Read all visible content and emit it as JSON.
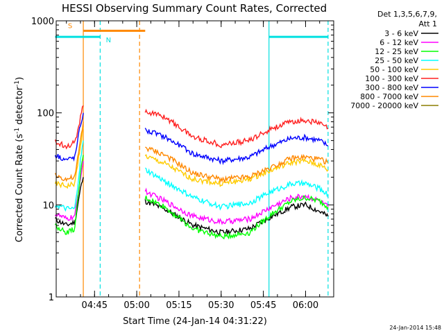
{
  "chart_data": {
    "type": "line",
    "title": "HESSI Observing Summary Count Rates, Corrected",
    "xlabel": "Start Time (24-Jan-14 04:31:22)",
    "ylabel_main": "Corrected Count Rate (s",
    "ylabel_sup1": "-1",
    "ylabel_mid": " detector",
    "ylabel_sup2": "-1",
    "ylabel_end": ")",
    "y_scale": "log",
    "ylim": [
      1,
      1000
    ],
    "y_ticks": [
      {
        "value": 1,
        "label": "1"
      },
      {
        "value": 10,
        "label": "10"
      },
      {
        "value": 100,
        "label": "100"
      },
      {
        "value": 1000,
        "label": "1000"
      }
    ],
    "xlim": [
      "04:31:22",
      "06:10:00"
    ],
    "x_ticks": [
      {
        "value": "04:45",
        "label": "04:45"
      },
      {
        "value": "05:00",
        "label": "05:00"
      },
      {
        "value": "05:15",
        "label": "05:15"
      },
      {
        "value": "05:30",
        "label": "05:30"
      },
      {
        "value": "05:45",
        "label": "05:45"
      },
      {
        "value": "06:00",
        "label": "06:00"
      }
    ],
    "legend_header": [
      "Det 1,3,5,6,7,9,",
      "Att 1"
    ],
    "legend_placement": "right",
    "grid": false,
    "series": [
      {
        "name": "3 - 6 keV",
        "color": "#000000",
        "points": [
          [
            "04:31",
            7
          ],
          [
            "04:35",
            6
          ],
          [
            "04:38",
            6.5
          ],
          [
            "04:40",
            15
          ],
          [
            "04:41",
            20
          ],
          [
            "05:03",
            11
          ],
          [
            "05:10",
            9
          ],
          [
            "05:20",
            6
          ],
          [
            "05:30",
            5
          ],
          [
            "05:40",
            5.5
          ],
          [
            "05:48",
            7.5
          ],
          [
            "05:55",
            9.5
          ],
          [
            "06:00",
            10
          ],
          [
            "06:05",
            8.5
          ],
          [
            "06:08",
            7.5
          ]
        ]
      },
      {
        "name": "6 - 12 keV",
        "color": "#ff00ff",
        "points": [
          [
            "04:31",
            8
          ],
          [
            "04:35",
            7
          ],
          [
            "04:38",
            7.5
          ],
          [
            "04:40",
            20
          ],
          [
            "04:41",
            30
          ],
          [
            "05:03",
            14
          ],
          [
            "05:10",
            11
          ],
          [
            "05:20",
            7.5
          ],
          [
            "05:30",
            6.5
          ],
          [
            "05:40",
            7
          ],
          [
            "05:48",
            9.5
          ],
          [
            "05:55",
            12
          ],
          [
            "06:00",
            12.5
          ],
          [
            "06:05",
            11
          ],
          [
            "06:08",
            9.5
          ]
        ]
      },
      {
        "name": "12 - 25 keV",
        "color": "#00ff00",
        "points": [
          [
            "04:31",
            6
          ],
          [
            "04:35",
            5
          ],
          [
            "04:38",
            5.5
          ],
          [
            "04:40",
            22
          ],
          [
            "04:41",
            35
          ],
          [
            "05:03",
            12
          ],
          [
            "05:10",
            9.5
          ],
          [
            "05:20",
            5.5
          ],
          [
            "05:30",
            4.5
          ],
          [
            "05:40",
            5
          ],
          [
            "05:48",
            8
          ],
          [
            "05:55",
            11
          ],
          [
            "06:00",
            12
          ],
          [
            "06:05",
            11
          ],
          [
            "06:08",
            9.5
          ]
        ]
      },
      {
        "name": "25 - 50 keV",
        "color": "#00ffff",
        "points": [
          [
            "04:31",
            10
          ],
          [
            "04:35",
            9
          ],
          [
            "04:38",
            9
          ],
          [
            "04:40",
            30
          ],
          [
            "04:41",
            50
          ],
          [
            "05:03",
            24
          ],
          [
            "05:10",
            18
          ],
          [
            "05:20",
            12
          ],
          [
            "05:30",
            9.5
          ],
          [
            "05:40",
            10.5
          ],
          [
            "05:48",
            14
          ],
          [
            "05:55",
            17
          ],
          [
            "06:00",
            17
          ],
          [
            "06:05",
            15
          ],
          [
            "06:08",
            13
          ]
        ]
      },
      {
        "name": "50 - 100 keV",
        "color": "#ffcc00",
        "points": [
          [
            "04:31",
            17
          ],
          [
            "04:35",
            16
          ],
          [
            "04:38",
            17
          ],
          [
            "04:40",
            45
          ],
          [
            "04:41",
            70
          ],
          [
            "05:03",
            34
          ],
          [
            "05:10",
            28
          ],
          [
            "05:20",
            19
          ],
          [
            "05:30",
            17
          ],
          [
            "05:40",
            19
          ],
          [
            "05:48",
            24
          ],
          [
            "05:55",
            29
          ],
          [
            "06:00",
            30
          ],
          [
            "06:05",
            27
          ],
          [
            "06:08",
            24
          ]
        ]
      },
      {
        "name": "100 - 300 keV",
        "color": "#ff2020",
        "points": [
          [
            "04:31",
            48
          ],
          [
            "04:35",
            44
          ],
          [
            "04:38",
            47
          ],
          [
            "04:40",
            90
          ],
          [
            "04:41",
            120
          ],
          [
            "05:03",
            105
          ],
          [
            "05:10",
            90
          ],
          [
            "05:20",
            55
          ],
          [
            "05:30",
            45
          ],
          [
            "05:40",
            50
          ],
          [
            "05:48",
            68
          ],
          [
            "05:55",
            80
          ],
          [
            "06:00",
            83
          ],
          [
            "06:05",
            77
          ],
          [
            "06:08",
            68
          ]
        ]
      },
      {
        "name": "300 - 800 keV",
        "color": "#0000ff",
        "points": [
          [
            "04:31",
            35
          ],
          [
            "04:35",
            31
          ],
          [
            "04:38",
            33
          ],
          [
            "04:40",
            75
          ],
          [
            "04:41",
            100
          ],
          [
            "05:03",
            65
          ],
          [
            "05:10",
            55
          ],
          [
            "05:20",
            36
          ],
          [
            "05:30",
            30
          ],
          [
            "05:40",
            33
          ],
          [
            "05:48",
            44
          ],
          [
            "05:55",
            53
          ],
          [
            "06:00",
            54
          ],
          [
            "06:05",
            50
          ],
          [
            "06:08",
            44
          ]
        ]
      },
      {
        "name": "800 - 7000 keV",
        "color": "#ff8800",
        "points": [
          [
            "04:31",
            21
          ],
          [
            "04:35",
            19
          ],
          [
            "04:38",
            20
          ],
          [
            "04:40",
            50
          ],
          [
            "04:41",
            80
          ],
          [
            "05:03",
            42
          ],
          [
            "05:10",
            35
          ],
          [
            "05:20",
            22
          ],
          [
            "05:30",
            19
          ],
          [
            "05:40",
            20
          ],
          [
            "05:48",
            26
          ],
          [
            "05:55",
            32
          ],
          [
            "06:00",
            33
          ],
          [
            "06:05",
            31
          ],
          [
            "06:08",
            29
          ]
        ]
      },
      {
        "name": "7000 - 20000 keV",
        "color": "#8b7d00",
        "points": []
      }
    ],
    "annotations": [
      {
        "label": "S",
        "color": "#ff8800",
        "start": "04:41",
        "end": "05:03",
        "level": 780
      },
      {
        "label": "N",
        "color": "#00e0e0",
        "start": "04:31",
        "end": "04:47",
        "level": 670
      }
    ],
    "vertical_markers": [
      {
        "time": "04:41",
        "color": "#ff8800",
        "style": "solid"
      },
      {
        "time": "04:47",
        "color": "#00e0e0",
        "style": "dashed"
      },
      {
        "time": "05:01",
        "color": "#ff8800",
        "style": "dashed"
      },
      {
        "time": "05:47",
        "color": "#00e0e0",
        "style": "solid"
      },
      {
        "time": "06:08",
        "color": "#00e0e0",
        "style": "dashed"
      }
    ],
    "footer_date": "24-Jan-2014 15:48"
  }
}
